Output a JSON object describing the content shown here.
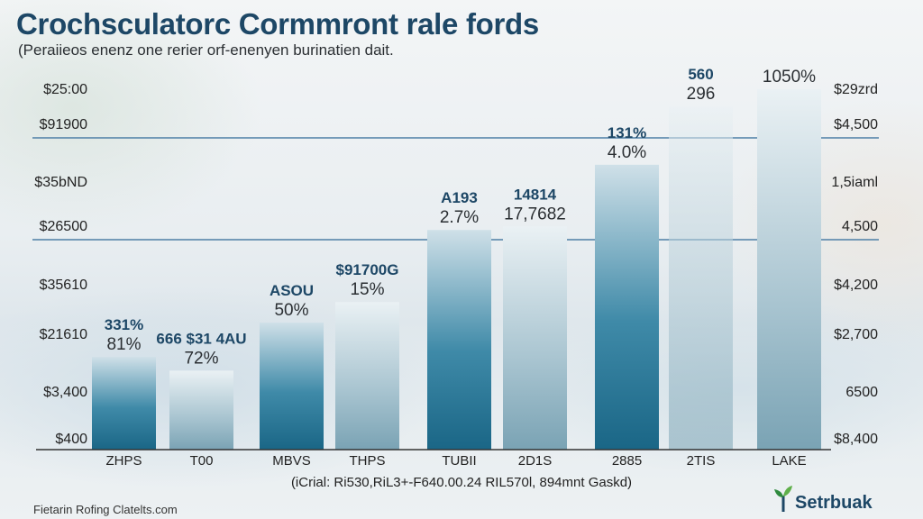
{
  "header": {
    "title": "Crochsculatorc Cormmront rale fords",
    "subtitle": "(Peraiieos enenz one rerier orf-enenyen burinatien dait."
  },
  "chart_data": {
    "type": "bar",
    "title": "Crochsculatorc Cormmront rale fords",
    "subtitle": "(Peraiieos enenz one rerier orf-enenyen burinatien dait.",
    "xlabel": "",
    "ylabel": "",
    "categories": [
      "ZHPS",
      "T00",
      "MBVS",
      "THPS",
      "TUBII",
      "2D1S",
      "2885",
      "2TIS",
      "LAKE"
    ],
    "values": [
      27,
      23,
      37,
      43,
      64,
      65,
      83,
      100,
      105
    ],
    "value_scale_note": "relative bar heights on 0–110 scale; axes are unlabeled-units",
    "ylim": [
      0,
      110
    ],
    "left_axis_ticks": [
      "$25:00",
      "$91900",
      "$35bND",
      "$26500",
      "$35610",
      "$21610",
      "$3,400",
      "$400"
    ],
    "right_axis_ticks": [
      "$29zrd",
      "$4,500",
      "1,5iaml",
      "4,500",
      "$4,200",
      "$2,700",
      "6500",
      "$8,400"
    ],
    "bar_top_labels": [
      "331%",
      "666 $31 4AU",
      "ASOU",
      "$91700G",
      "A193",
      "14814",
      "131%",
      "560",
      ""
    ],
    "bar_pct_labels": [
      "81%",
      "72%",
      "50%",
      "15%",
      "2.7%",
      "17,7682",
      "4.0%",
      "296",
      "1050%"
    ],
    "bar_styles": [
      "dark",
      "light",
      "dark",
      "light",
      "dark",
      "light",
      "dark",
      "light",
      "light"
    ],
    "grid": true,
    "gridlines_at_ticks": [
      "$91900",
      "$26500"
    ],
    "legend": "none"
  },
  "footer": {
    "note": "(iCrial: Ri530,RiL3+-F640.00.24 RIL570l, 894mnt Gaskd)",
    "source": "Fietarin Rofing Clatelts.com",
    "brand": "Setrbuak"
  },
  "colors": {
    "title": "#1d4766",
    "bar_dark_top": "#c9dde6",
    "bar_dark_bottom": "#1d6f8f",
    "bar_light_top": "#e6eef2",
    "bar_light_bottom": "#7ea7b8",
    "gridline": "#4d7fa6"
  }
}
